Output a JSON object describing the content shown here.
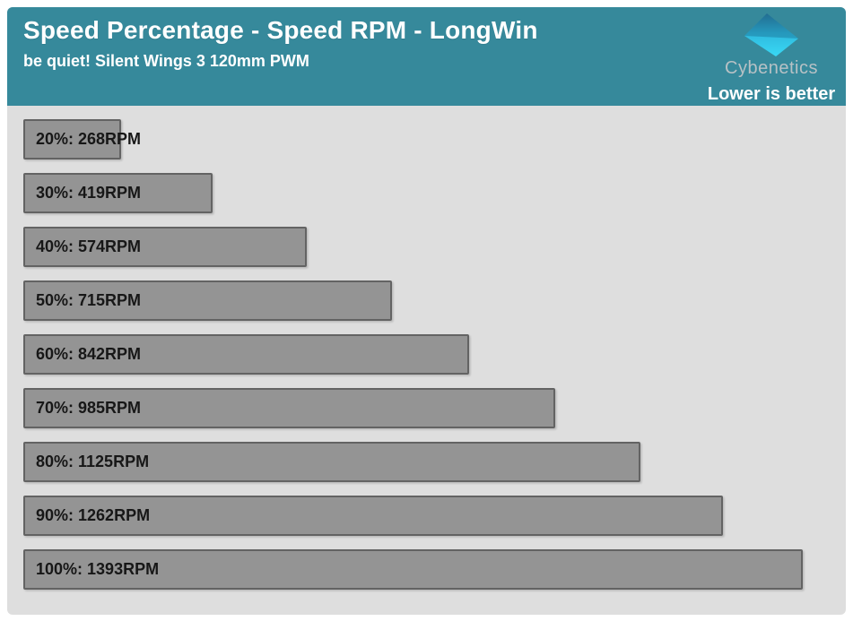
{
  "header": {
    "title": "Speed Percentage - Speed RPM - LongWin",
    "subtitle": "be quiet! Silent Wings 3 120mm PWM",
    "brand_name": "Cybenetics",
    "note": "Lower is better",
    "background_color": "#36899B"
  },
  "chart_data": {
    "type": "bar",
    "orientation": "horizontal",
    "title": "Speed Percentage - Speed RPM - LongWin",
    "subtitle": "be quiet! Silent Wings 3 120mm PWM",
    "categories": [
      "20%",
      "30%",
      "40%",
      "50%",
      "60%",
      "70%",
      "80%",
      "90%",
      "100%"
    ],
    "values": [
      268,
      419,
      574,
      715,
      842,
      985,
      1125,
      1262,
      1393
    ],
    "unit": "RPM",
    "labels": [
      "20%: 268RPM",
      "30%: 419RPM",
      "40%: 574RPM",
      "50%: 715RPM",
      "60%: 842RPM",
      "70%: 985RPM",
      "80%: 1125RPM",
      "90%: 1262RPM",
      "100%: 1393RPM"
    ],
    "xlim": [
      107,
      1393
    ],
    "grid": false,
    "legend": false,
    "value_label_position": "inside-left",
    "bar_color": "#949494",
    "bar_border_color": "#636363",
    "label_color": "#171717",
    "plot_background_color": "#dedede",
    "annotation": "Lower is better"
  }
}
